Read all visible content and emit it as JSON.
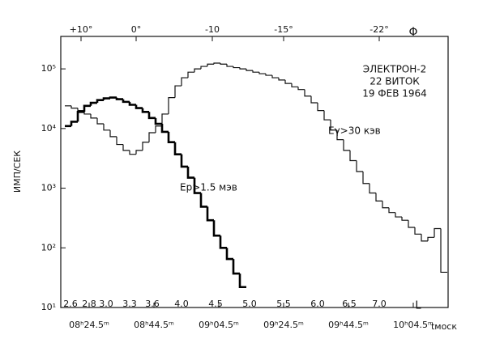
{
  "chart_data": {
    "type": "step",
    "y_label": "ИМП/СЕК",
    "x_label": "tмоск",
    "annotations": [
      "ЭЛЕКТРОН-2",
      "22 ВИТОК",
      "19 ФЕВ 1964"
    ],
    "log_y": true,
    "xlim": [
      15.75,
      135.25
    ],
    "ylim": [
      10,
      350000
    ],
    "xticks": [
      {
        "value": 24.5,
        "label": "08ʰ24.5ᵐ"
      },
      {
        "value": 44.5,
        "label": "08ʰ44.5ᵐ"
      },
      {
        "value": 64.5,
        "label": "09ʰ04.5ᵐ"
      },
      {
        "value": 84.5,
        "label": "09ʰ24.5ᵐ"
      },
      {
        "value": 104.5,
        "label": "09ʰ44.5ᵐ"
      },
      {
        "value": 124.5,
        "label": "10ʰ04.5ᵐ"
      }
    ],
    "yticks": [
      {
        "value": 10,
        "label": "10¹"
      },
      {
        "value": 100,
        "label": "10²"
      },
      {
        "value": 1000,
        "label": "10³"
      },
      {
        "value": 10000,
        "label": "10⁴"
      },
      {
        "value": 100000,
        "label": "10⁵"
      }
    ],
    "phi_name": "Φ",
    "phi_ticks": [
      {
        "value": 22,
        "label": "+10°"
      },
      {
        "value": 39,
        "label": "0°"
      },
      {
        "value": 62.5,
        "label": "-10"
      },
      {
        "value": 84.5,
        "label": "-15°"
      },
      {
        "value": 114,
        "label": "-22°"
      }
    ],
    "l_name": "L",
    "l_ticks": [
      {
        "value": 18.75,
        "label": "2.6"
      },
      {
        "value": 24.5,
        "label": "2.8"
      },
      {
        "value": 29.75,
        "label": "3.0"
      },
      {
        "value": 37,
        "label": "3.3"
      },
      {
        "value": 44,
        "label": "3.6"
      },
      {
        "value": 53,
        "label": "4.0"
      },
      {
        "value": 63.5,
        "label": "4.5"
      },
      {
        "value": 74,
        "label": "5.0"
      },
      {
        "value": 84.5,
        "label": "5.5"
      },
      {
        "value": 95,
        "label": "6.0"
      },
      {
        "value": 104.75,
        "label": "6.5"
      },
      {
        "value": 114,
        "label": "7.0"
      }
    ],
    "step_width": 2,
    "series": [
      {
        "name": "Eγ>30 кэв",
        "color": "#111111",
        "width": 1.2,
        "x": [
          17,
          19,
          21,
          23,
          25,
          27,
          29,
          31,
          33,
          35,
          37,
          39,
          41,
          43,
          45,
          47,
          49,
          51,
          53,
          55,
          57,
          59,
          61,
          63,
          65,
          67,
          69,
          71,
          73,
          75,
          77,
          79,
          81,
          83,
          85,
          87,
          89,
          91,
          93,
          95,
          97,
          99,
          101,
          103,
          105,
          107,
          109,
          111,
          113,
          115,
          117,
          119,
          121,
          123,
          125,
          127,
          129,
          131,
          133
        ],
        "values": [
          24000,
          22000,
          20000,
          17500,
          15000,
          12000,
          9400,
          7300,
          5400,
          4300,
          3700,
          4300,
          5900,
          8500,
          11000,
          17500,
          33000,
          52000,
          71000,
          88000,
          100000,
          110000,
          120000,
          125000,
          120000,
          110000,
          105000,
          100000,
          94000,
          88000,
          83000,
          78000,
          71000,
          65000,
          57000,
          50000,
          45000,
          35000,
          27000,
          20000,
          14000,
          9400,
          6500,
          4300,
          2900,
          1900,
          1200,
          830,
          610,
          470,
          390,
          330,
          290,
          220,
          170,
          130,
          150,
          210,
          39
        ]
      },
      {
        "name": "Ep>1.5 мэв",
        "color": "#000000",
        "width": 2.6,
        "x": [
          17,
          19,
          21,
          23,
          25,
          27,
          29,
          31,
          33,
          35,
          37,
          39,
          41,
          43,
          45,
          47,
          49,
          51,
          53,
          55,
          57,
          59,
          61,
          63,
          65,
          67,
          69,
          71
        ],
        "values": [
          11000,
          13000,
          19000,
          24000,
          27000,
          30000,
          32000,
          33000,
          31000,
          28000,
          25000,
          22000,
          19000,
          15000,
          12000,
          8800,
          5900,
          3700,
          2300,
          1500,
          830,
          490,
          290,
          160,
          100,
          65,
          37,
          22
        ]
      }
    ]
  }
}
